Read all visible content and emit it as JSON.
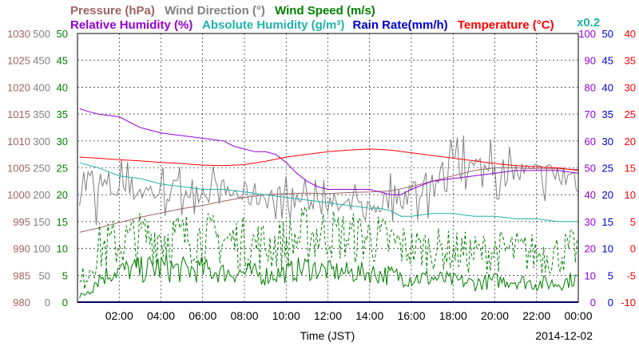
{
  "chart_data": {
    "type": "line",
    "xlabel": "Time (JST)",
    "date_label": "2014-12-02",
    "x_ticks": [
      "02:00",
      "04:00",
      "06:00",
      "08:00",
      "10:00",
      "12:00",
      "14:00",
      "16:00",
      "18:00",
      "20:00",
      "22:00",
      "00:00"
    ],
    "x_range": [
      0,
      24
    ],
    "grid": true,
    "legend": {
      "row1": [
        {
          "text": "Pressure (hPa)",
          "color": "#a06464"
        },
        {
          "text": "Wind Direction (°)",
          "color": "#808080"
        },
        {
          "text": "Wind Speed (m/s)",
          "color": "#008000"
        }
      ],
      "row2": [
        {
          "text": "Relative Humidity (%)",
          "color": "#9400d3"
        },
        {
          "text": "Absolute Humidity (g/m³)",
          "color": "#20b2aa"
        },
        {
          "text": "Rain Rate(mm/h)",
          "color": "#0000cc"
        },
        {
          "text": "Temperature (°C)",
          "color": "#ff0000"
        },
        {
          "text": "x0.2",
          "color": "#20b2aa"
        }
      ]
    },
    "axes": {
      "pressure": {
        "color": "#a06464",
        "ticks": [
          "1030",
          "1025",
          "1020",
          "1015",
          "1010",
          "1005",
          "1000",
          "995",
          "990",
          "985",
          "980"
        ],
        "range": [
          980,
          1030
        ]
      },
      "wind_direction": {
        "color": "#808080",
        "ticks": [
          "500",
          "450",
          "400",
          "350",
          "300",
          "250",
          "200",
          "150",
          "100",
          "50",
          "0"
        ],
        "range": [
          0,
          500
        ]
      },
      "wind_speed": {
        "color": "#008000",
        "ticks": [
          "50",
          "45",
          "40",
          "35",
          "30",
          "25",
          "20",
          "15",
          "10",
          "5",
          "0"
        ],
        "range": [
          0,
          50
        ]
      },
      "humidity": {
        "color": "#9400d3",
        "ticks": [
          "100",
          "90",
          "80",
          "70",
          "60",
          "50",
          "40",
          "30",
          "20",
          "10",
          "0"
        ],
        "range": [
          0,
          100
        ]
      },
      "rain_rate": {
        "color": "#0000cc",
        "ticks": [
          "50",
          "45",
          "40",
          "35",
          "30",
          "25",
          "20",
          "15",
          "10",
          "5",
          "0"
        ],
        "range": [
          0,
          50
        ]
      },
      "temperature": {
        "color": "#ff0000",
        "ticks": [
          "40",
          "35",
          "30",
          "25",
          "20",
          "15",
          "10",
          "5",
          "0",
          "-5",
          "-10"
        ],
        "range": [
          -10,
          40
        ]
      }
    },
    "series": [
      {
        "name": "Pressure (hPa)",
        "axis": "pressure",
        "color": "#a06464",
        "x": [
          0.1,
          1,
          2,
          3,
          4,
          5,
          6,
          7,
          8,
          9,
          10,
          11,
          12,
          13,
          14,
          15,
          16,
          17,
          18,
          19,
          20,
          21,
          22,
          23,
          24
        ],
        "y": [
          993.0,
          993.8,
          994.8,
          995.8,
          996.6,
          997.4,
          998.0,
          998.8,
          999.5,
          1000.0,
          1000.2,
          1000.3,
          1000.2,
          1000.4,
          1000.5,
          1000.7,
          1001.5,
          1002.5,
          1003.5,
          1004.5,
          1005.0,
          1005.0,
          1004.8,
          1004.8,
          1004.7
        ]
      },
      {
        "name": "Wind Direction (°)",
        "axis": "wind_direction",
        "color": "#808080",
        "style": "noisy",
        "x": [
          0.1,
          1,
          2,
          3,
          4,
          5,
          6,
          7,
          8,
          9,
          10,
          11,
          12,
          13,
          14,
          15,
          16,
          17,
          18,
          19,
          20,
          21,
          22,
          23,
          24
        ],
        "y": [
          225,
          215,
          212,
          208,
          205,
          207,
          210,
          205,
          200,
          198,
          195,
          188,
          182,
          175,
          172,
          195,
          205,
          225,
          235,
          245,
          245,
          240,
          238,
          235,
          232
        ],
        "noise": [
          45,
          40,
          30,
          25,
          25,
          25,
          25,
          25,
          25,
          25,
          22,
          22,
          25,
          25,
          25,
          25,
          30,
          38,
          38,
          40,
          30,
          25,
          25,
          30,
          35
        ]
      },
      {
        "name": "Wind Speed (m/s)",
        "axis": "wind_speed",
        "color": "#008000",
        "x": [
          0.1,
          1,
          2,
          3,
          4,
          5,
          6,
          7,
          8,
          9,
          10,
          11,
          12,
          13,
          14,
          15,
          16,
          17,
          18,
          19,
          20,
          21,
          22,
          23,
          24
        ],
        "y": [
          0.5,
          4.5,
          6.0,
          6.0,
          6.5,
          6.0,
          6.0,
          5.5,
          5.5,
          5.0,
          5.5,
          6.5,
          5.8,
          5.5,
          5.5,
          5.0,
          4.5,
          4.5,
          4.0,
          3.5,
          4.0,
          4.0,
          3.5,
          3.5,
          4.5
        ],
        "noise": [
          1,
          2,
          2,
          2.5,
          3,
          2.5,
          2.5,
          2,
          2,
          2,
          2,
          2.5,
          2,
          2,
          2,
          2,
          1.8,
          1.8,
          1.5,
          1.5,
          1.5,
          1.5,
          1.5,
          1.5,
          1.5
        ]
      },
      {
        "name": "Wind Gust (m/s)",
        "axis": "wind_speed",
        "color": "#008000",
        "dash": true,
        "x": [
          0.1,
          1,
          2,
          3,
          4,
          5,
          6,
          7,
          8,
          9,
          10,
          11,
          12,
          13,
          14,
          15,
          16,
          17,
          18,
          19,
          20,
          21,
          22,
          23,
          24
        ],
        "y": [
          3,
          10,
          11,
          12,
          12.5,
          12,
          12,
          11.5,
          11,
          10.5,
          11,
          12.5,
          13,
          12,
          12,
          11,
          10,
          10,
          9.5,
          9,
          9.5,
          9.5,
          9,
          9,
          10
        ],
        "noise": [
          2,
          5,
          5,
          5,
          6,
          5,
          5,
          5,
          5,
          5,
          5,
          6,
          5,
          5,
          5,
          5,
          4,
          4,
          4,
          4,
          4,
          4,
          4,
          4,
          4
        ]
      },
      {
        "name": "Relative Humidity (%)",
        "axis": "humidity",
        "color": "#9400d3",
        "x": [
          0.1,
          0.5,
          1,
          2,
          3,
          4,
          5,
          6,
          7,
          7.5,
          8,
          8.5,
          9,
          9.5,
          10,
          10.5,
          11,
          11.5,
          12,
          13,
          14,
          14.5,
          15,
          15.5,
          16,
          17,
          18,
          19,
          20,
          21,
          22,
          23,
          24
        ],
        "y": [
          72,
          71,
          70,
          69,
          65,
          63,
          62,
          61,
          60,
          58,
          57,
          56,
          56,
          55,
          52,
          48,
          45,
          43,
          42,
          42,
          42,
          41,
          40,
          40,
          42,
          45,
          46,
          47,
          48,
          49,
          49,
          49,
          48
        ]
      },
      {
        "name": "Absolute Humidity (g/m³) x0.2",
        "axis": "humidity",
        "color": "#20b2aa",
        "x": [
          0.1,
          0.5,
          1,
          2,
          3,
          4,
          5,
          6,
          7,
          8,
          9,
          10,
          11,
          12,
          13,
          14,
          14.5,
          15,
          15.5,
          16,
          17,
          18,
          19,
          20,
          21,
          22,
          23,
          24
        ],
        "y": [
          52,
          51,
          50,
          47,
          46,
          44,
          43,
          42,
          42,
          41,
          40,
          39,
          38,
          37,
          36,
          35,
          35,
          34,
          32,
          32,
          33,
          33,
          32,
          32,
          31,
          31,
          30,
          30
        ]
      },
      {
        "name": "Temperature (°C)",
        "axis": "temperature",
        "color": "#ff0000",
        "x": [
          0.1,
          1,
          2,
          3,
          4,
          5,
          6,
          7,
          8,
          9,
          10,
          11,
          12,
          13,
          14,
          15,
          16,
          17,
          18,
          19,
          20,
          21,
          22,
          23,
          24
        ],
        "y": [
          17.0,
          16.8,
          16.5,
          16.3,
          16.0,
          15.8,
          15.5,
          15.4,
          15.6,
          16.2,
          17.0,
          17.5,
          18.0,
          18.3,
          18.5,
          18.3,
          17.8,
          17.3,
          16.8,
          16.3,
          15.8,
          15.4,
          15.2,
          15.0,
          14.5
        ]
      },
      {
        "name": "Rain Rate(mm/h)",
        "axis": "rain_rate",
        "color": "#0000cc",
        "x": [
          0,
          24
        ],
        "y": [
          0,
          0
        ]
      }
    ]
  }
}
